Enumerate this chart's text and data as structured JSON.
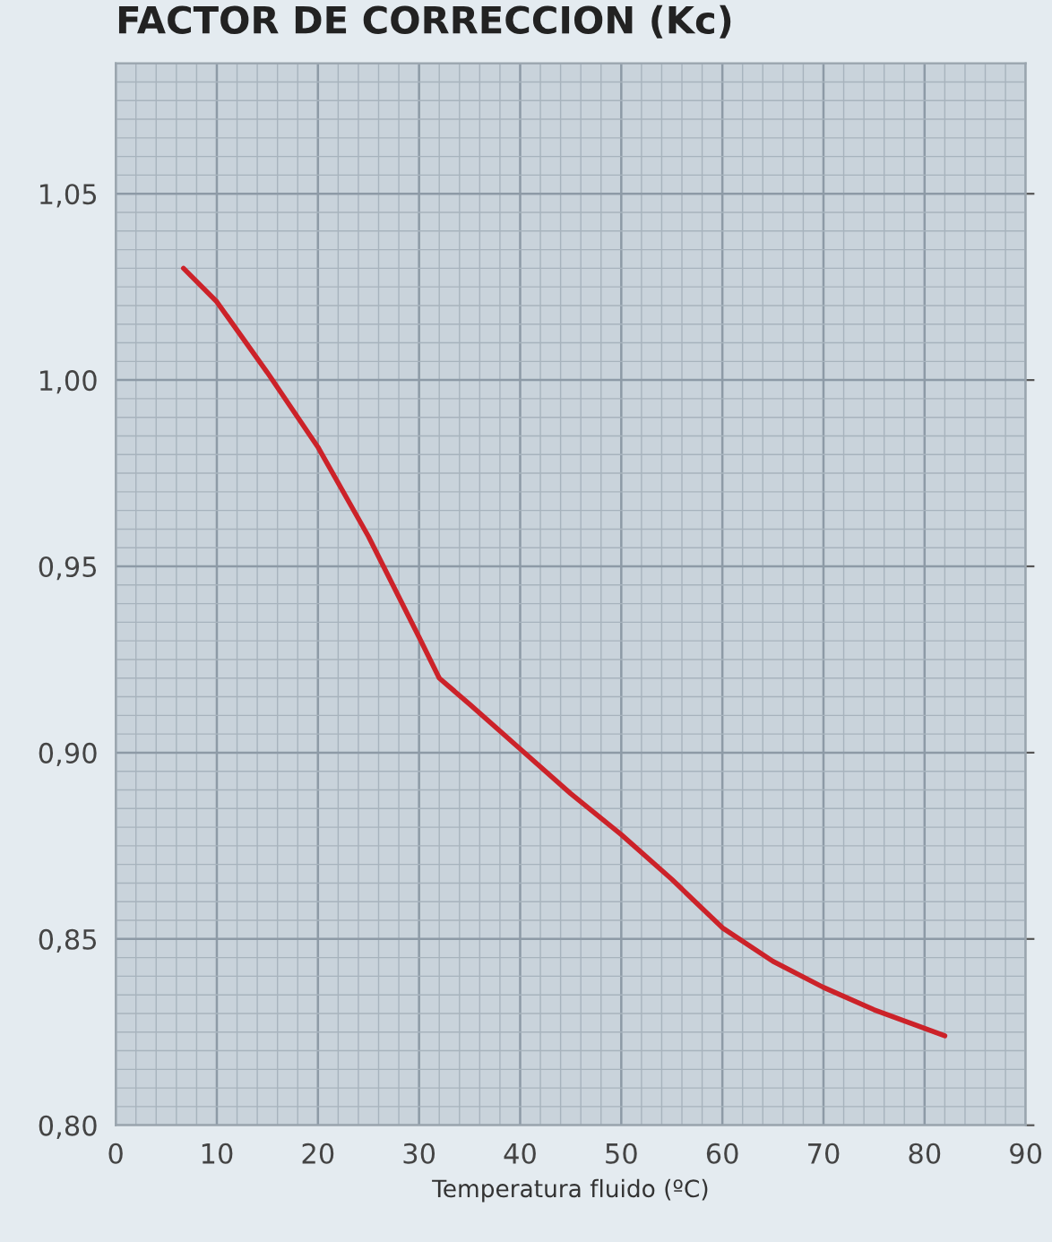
{
  "chart_data": {
    "type": "line",
    "title": "FACTOR DE CORRECCION (Kc)",
    "xlabel": "Temperatura fluido (ºC)",
    "x": [
      6.7,
      10,
      15,
      20,
      25,
      30,
      32,
      35,
      40,
      45,
      50,
      55,
      60,
      65,
      70,
      75,
      82
    ],
    "series": [
      {
        "color": "#cc2229",
        "values": [
          1.03,
          1.021,
          1.002,
          0.982,
          0.958,
          0.931,
          0.92,
          0.913,
          0.901,
          0.889,
          0.878,
          0.866,
          0.853,
          0.844,
          0.837,
          0.831,
          0.824
        ]
      }
    ],
    "xlim": [
      0,
      90
    ],
    "ylim": [
      0.8,
      1.085
    ],
    "xticks": [
      0,
      10,
      20,
      30,
      40,
      50,
      60,
      70,
      80,
      90
    ],
    "yticks": [
      {
        "value": 0.8,
        "label": "0,80"
      },
      {
        "value": 0.85,
        "label": "0,85"
      },
      {
        "value": 0.9,
        "label": "0,90"
      },
      {
        "value": 0.95,
        "label": "0,95"
      },
      {
        "value": 1.0,
        "label": "1,00"
      },
      {
        "value": 1.05,
        "label": "1,05"
      }
    ],
    "grid": true,
    "line_style": "solid",
    "marker": "none"
  }
}
